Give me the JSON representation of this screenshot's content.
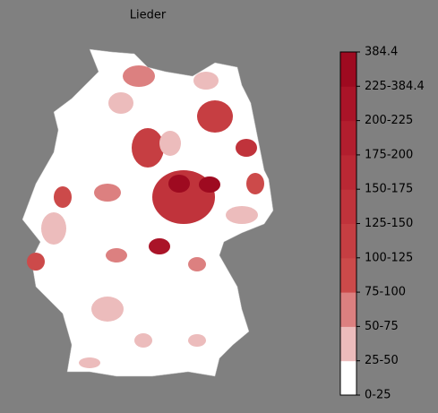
{
  "title": "Lieder",
  "legend": {
    "ticks": [
      "0-25",
      "25-50",
      "50-75",
      "75-100",
      "100-125",
      "125-150",
      "150-175",
      "175-200",
      "200-225",
      "225-384.4",
      "384.4"
    ],
    "colors": [
      "#ffffff",
      "#ecbcbc",
      "#dc8080",
      "#cc4a4a",
      "#c63e42",
      "#c0333b",
      "#ba2834",
      "#b21e2e",
      "#aa1428",
      "#9e0a20"
    ]
  }
}
